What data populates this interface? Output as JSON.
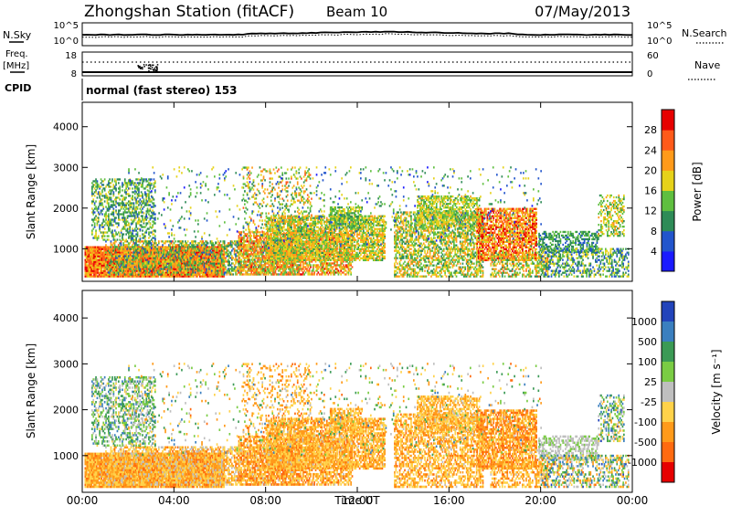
{
  "header": {
    "title": "Zhongshan Station (fitACF)",
    "beam": "Beam 10",
    "date": "07/May/2013"
  },
  "top_panels": {
    "nsky_label": "N.Sky",
    "nsky_ticks": [
      "10^5",
      "10^0"
    ],
    "nsearch_label": "N.Search",
    "nsearch_ticks": [
      "10^5",
      "10^0"
    ],
    "freq_label": "Freq.",
    "freq_unit": "[MHz]",
    "freq_ticks": [
      "18",
      "8"
    ],
    "nave_label": "Nave",
    "nave_ticks": [
      "60",
      "0"
    ],
    "cpid_label": "CPID",
    "cpid_text": "normal (fast stereo) 153"
  },
  "chart_data": [
    {
      "type": "heatmap",
      "name": "power",
      "ylabel": "Slant Range [km]",
      "yticks": [
        "1000",
        "2000",
        "3000",
        "4000"
      ],
      "ylim": [
        200,
        4600
      ],
      "colorbar_label": "Power [dB]",
      "colorbar_ticks": [
        "4",
        "8",
        "12",
        "16",
        "20",
        "24",
        "28"
      ],
      "colors": [
        "#1a1aff",
        "#2255cc",
        "#2e8b57",
        "#5fbf3f",
        "#e6d21a",
        "#ff9a1a",
        "#ff5a1a",
        "#e60000"
      ],
      "grid": false
    },
    {
      "type": "heatmap",
      "name": "velocity",
      "ylabel": "Slant Range [km]",
      "yticks": [
        "1000",
        "2000",
        "3000",
        "4000"
      ],
      "ylim": [
        200,
        4600
      ],
      "colorbar_label": "Velocity [m s⁻¹]",
      "colorbar_ticks": [
        "1000",
        "500",
        "100",
        "25",
        "-25",
        "-100",
        "-500",
        "-1000"
      ],
      "colors": [
        "#2244bb",
        "#3a7fbf",
        "#3b9a55",
        "#7acc44",
        "#bfbfbf",
        "#ffd24a",
        "#ff9a1a",
        "#ff6a10",
        "#e60000"
      ],
      "grid": false
    }
  ],
  "x_axis": {
    "xlabel": "Time UT",
    "xticks": [
      "00:00",
      "04:00",
      "08:00",
      "12:00",
      "16:00",
      "20:00",
      "00:00"
    ]
  }
}
